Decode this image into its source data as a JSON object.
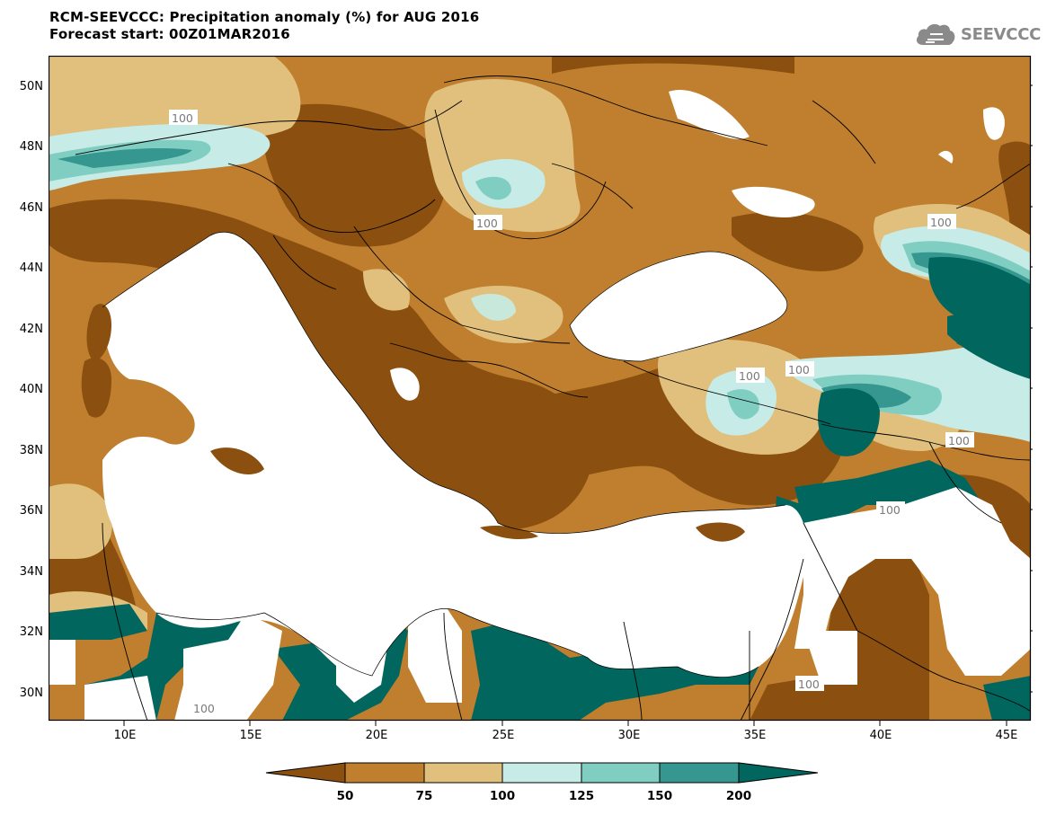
{
  "header": {
    "title": "RCM-SEEVCCC: Precipitation anomaly (%) for AUG 2016",
    "subtitle": "Forecast start: 00Z01MAR2016"
  },
  "logo": {
    "text": "SEEVCCC",
    "icon": "cloud-icon"
  },
  "map": {
    "lon_ticks": [
      "10E",
      "15E",
      "20E",
      "25E",
      "30E",
      "35E",
      "40E",
      "45E"
    ],
    "lat_ticks": [
      "50N",
      "48N",
      "46N",
      "44N",
      "42N",
      "40N",
      "38N",
      "36N",
      "34N",
      "32N",
      "30N"
    ],
    "contour_labels": [
      "100",
      "100",
      "100",
      "100",
      "100",
      "100",
      "100",
      "100",
      "100"
    ],
    "colors": {
      "lt50": "#8b4f0f",
      "50_75": "#bf7f2f",
      "75_100": "#e0c07c",
      "100_125": "#c7ece7",
      "125_150": "#80cdc1",
      "150_200": "#35978f",
      "gt200": "#01665e",
      "sea": "#ffffff"
    }
  },
  "colorbar": {
    "labels": [
      "50",
      "75",
      "100",
      "125",
      "150",
      "200"
    ]
  }
}
